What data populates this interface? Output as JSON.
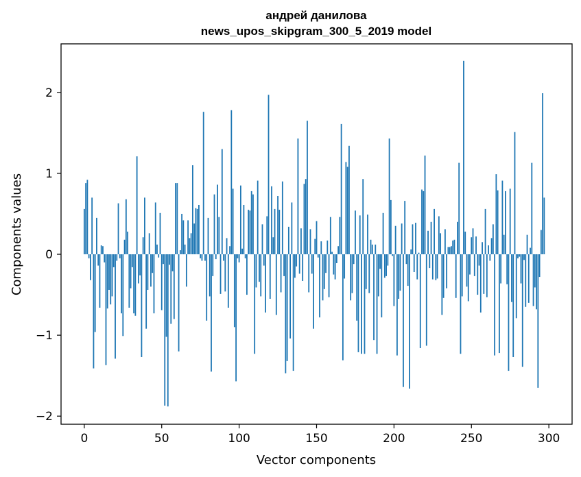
{
  "chart_data": {
    "type": "bar",
    "title_lines": [
      "андрей данилова",
      "news_upos_skipgram_300_5_2019 model"
    ],
    "xlabel": "Vector components",
    "ylabel": "Components values",
    "xlim": [
      -15.0,
      315.0
    ],
    "ylim": [
      -2.1,
      2.6
    ],
    "x_ticks": [
      {
        "value": 0,
        "label": "0"
      },
      {
        "value": 50,
        "label": "50"
      },
      {
        "value": 100,
        "label": "100"
      },
      {
        "value": 150,
        "label": "150"
      },
      {
        "value": 200,
        "label": "200"
      },
      {
        "value": 250,
        "label": "250"
      },
      {
        "value": 300,
        "label": "300"
      }
    ],
    "y_ticks": [
      {
        "value": -2,
        "label": "−2"
      },
      {
        "value": -1,
        "label": "−1"
      },
      {
        "value": 0,
        "label": "0"
      },
      {
        "value": 1,
        "label": "1"
      },
      {
        "value": 2,
        "label": "2"
      }
    ],
    "bar_color": "#1f77b4",
    "values": [
      0.56,
      0.88,
      0.92,
      -0.05,
      -0.32,
      0.7,
      -1.41,
      -0.96,
      0.45,
      -0.14,
      -0.66,
      0.11,
      0.1,
      -0.1,
      -1.37,
      -0.67,
      -0.44,
      -0.62,
      -0.52,
      -0.16,
      -1.29,
      -0.08,
      0.63,
      -0.05,
      -0.73,
      -1.01,
      0.18,
      0.68,
      0.28,
      -0.66,
      -0.42,
      -0.16,
      -0.73,
      -0.76,
      1.21,
      -0.36,
      -0.26,
      -1.27,
      0.21,
      0.7,
      -0.92,
      -0.44,
      0.26,
      -0.4,
      -0.23,
      -0.73,
      0.64,
      0.12,
      -0.04,
      0.51,
      -0.69,
      -0.12,
      -1.87,
      -1.02,
      -1.88,
      -0.13,
      -0.86,
      -0.21,
      -0.8,
      0.88,
      0.88,
      -1.2,
      0.05,
      0.5,
      0.42,
      0.12,
      -0.4,
      0.42,
      0.2,
      0.26,
      1.1,
      0.38,
      0.57,
      0.56,
      0.61,
      -0.05,
      -0.08,
      1.76,
      -0.08,
      -0.82,
      0.45,
      -0.52,
      -1.45,
      -0.27,
      0.74,
      -0.06,
      0.86,
      0.46,
      -0.49,
      1.3,
      -0.08,
      -0.46,
      0.2,
      -0.66,
      0.1,
      1.78,
      0.81,
      -0.9,
      -1.57,
      -0.05,
      -0.1,
      0.85,
      0.07,
      0.61,
      -0.05,
      -0.5,
      0.55,
      0.54,
      0.78,
      0.74,
      -1.23,
      -0.41,
      0.91,
      -0.34,
      -0.52,
      0.37,
      -0.14,
      -0.72,
      0.47,
      1.97,
      -0.55,
      0.84,
      0.21,
      0.56,
      -0.75,
      0.72,
      0.55,
      -0.47,
      0.9,
      -0.27,
      -1.47,
      -1.32,
      0.34,
      -1.04,
      0.64,
      -1.44,
      -0.29,
      -0.15,
      1.43,
      -0.24,
      0.32,
      -0.33,
      0.87,
      0.93,
      1.65,
      -0.47,
      0.31,
      -0.24,
      -0.92,
      0.19,
      0.41,
      -0.04,
      -0.78,
      0.16,
      -0.57,
      -0.43,
      -0.23,
      0.17,
      -0.53,
      0.46,
      0.03,
      -0.25,
      -0.31,
      -0.11,
      0.1,
      0.46,
      1.61,
      -1.31,
      -0.3,
      1.14,
      1.08,
      1.34,
      -0.57,
      -0.48,
      -0.12,
      0.54,
      -0.82,
      -1.21,
      0.48,
      -1.23,
      0.93,
      -1.23,
      -0.43,
      0.49,
      -0.48,
      0.18,
      0.12,
      -1.06,
      0.12,
      -1.23,
      -0.52,
      -0.18,
      -0.78,
      0.51,
      -0.29,
      -0.27,
      -0.14,
      1.43,
      0.67,
      -0.02,
      -0.64,
      0.35,
      -1.25,
      -0.55,
      -0.45,
      0.38,
      -1.64,
      0.66,
      -0.12,
      -0.39,
      -1.66,
      0.06,
      0.37,
      -0.22,
      0.39,
      -0.31,
      0.02,
      -1.16,
      0.8,
      0.78,
      1.22,
      -1.13,
      0.29,
      -0.17,
      0.4,
      -0.31,
      0.56,
      -0.32,
      -0.3,
      0.47,
      0.26,
      -0.75,
      -0.54,
      0.31,
      -0.42,
      0.09,
      0.09,
      0.1,
      0.17,
      0.18,
      -0.54,
      0.4,
      1.13,
      -1.23,
      -0.52,
      2.39,
      0.28,
      -0.4,
      -0.58,
      -0.25,
      0.21,
      0.32,
      -0.27,
      0.22,
      -0.5,
      -0.14,
      -0.72,
      0.15,
      -0.49,
      0.56,
      -0.53,
      0.11,
      -0.08,
      0.2,
      0.37,
      -1.25,
      0.99,
      0.79,
      -1.22,
      -0.36,
      0.91,
      0.24,
      0.78,
      -0.37,
      -1.44,
      0.81,
      -0.59,
      -1.27,
      1.51,
      -0.79,
      -0.05,
      -0.03,
      -0.36,
      -1.39,
      -0.07,
      -0.65,
      0.24,
      -0.6,
      0.08,
      1.13,
      -0.64,
      -0.41,
      -0.68,
      -1.65,
      -0.28,
      0.3,
      1.99,
      0.7
    ]
  }
}
